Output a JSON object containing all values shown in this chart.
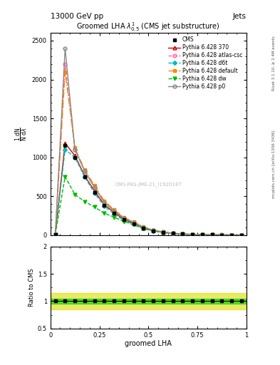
{
  "title_top": "13000 GeV pp",
  "title_right": "Jets",
  "plot_title": "Groomed LHA $\\lambda^{1}_{0.5}$ (CMS jet substructure)",
  "xlabel": "groomed LHA",
  "ylabel_main": "$\\frac{1}{\\mathrm{N}} \\frac{\\mathrm{d}\\mathrm{N}}{\\mathrm{d}\\lambda}$",
  "ylabel_ratio": "Ratio to CMS",
  "watermark": "CMS-PAS-JME-21_I1920187",
  "right_label1": "Rivet 3.1.10, ≥ 2.4M events",
  "right_label2": "mcplots.cern.ch [arXiv:1306.3436]",
  "x_data": [
    0.025,
    0.075,
    0.125,
    0.175,
    0.225,
    0.275,
    0.325,
    0.375,
    0.425,
    0.475,
    0.525,
    0.575,
    0.625,
    0.675,
    0.725,
    0.775,
    0.825,
    0.875,
    0.925,
    0.975
  ],
  "cms_y": [
    10,
    1150,
    1000,
    750,
    550,
    380,
    280,
    195,
    145,
    90,
    55,
    35,
    20,
    12,
    7,
    4,
    2,
    1.2,
    0.7,
    0.3
  ],
  "p370_y": [
    10,
    1180,
    1020,
    760,
    565,
    390,
    290,
    200,
    150,
    92,
    57,
    36,
    21,
    13,
    7.5,
    4.2,
    2.2,
    1.3,
    0.75,
    0.32
  ],
  "atlas_csc_y": [
    10,
    2200,
    1100,
    820,
    615,
    425,
    315,
    220,
    165,
    100,
    62,
    39,
    23,
    14,
    8,
    4.5,
    2.4,
    1.4,
    0.8,
    0.35
  ],
  "d6t_y": [
    10,
    1100,
    1000,
    745,
    540,
    370,
    270,
    188,
    140,
    86,
    53,
    33,
    19,
    11,
    6.5,
    3.7,
    1.9,
    1.1,
    0.65,
    0.28
  ],
  "default_y": [
    10,
    2100,
    1120,
    840,
    635,
    440,
    325,
    228,
    170,
    105,
    65,
    41,
    24,
    15,
    8.5,
    4.8,
    2.6,
    1.5,
    0.85,
    0.38
  ],
  "dw_y": [
    10,
    750,
    520,
    430,
    360,
    280,
    230,
    175,
    130,
    80,
    50,
    31,
    18,
    11,
    6,
    3.4,
    1.8,
    1.0,
    0.6,
    0.25
  ],
  "p0_y": [
    10,
    2400,
    1100,
    820,
    610,
    420,
    310,
    215,
    160,
    98,
    60,
    38,
    22,
    13,
    7.5,
    4.2,
    2.2,
    1.3,
    0.75,
    0.32
  ],
  "ratio_green_lo": 0.95,
  "ratio_green_hi": 1.05,
  "ratio_yellow_lo": 0.85,
  "ratio_yellow_hi": 1.15,
  "ylim_main": [
    0,
    2600
  ],
  "ylim_ratio": [
    0.5,
    2.0
  ],
  "xlim": [
    0,
    1.0
  ],
  "colors": {
    "cms": "#000000",
    "p370": "#cc0000",
    "atlas_csc": "#ff69b4",
    "d6t": "#00bbbb",
    "default": "#ff8800",
    "dw": "#00bb00",
    "p0": "#888888"
  }
}
